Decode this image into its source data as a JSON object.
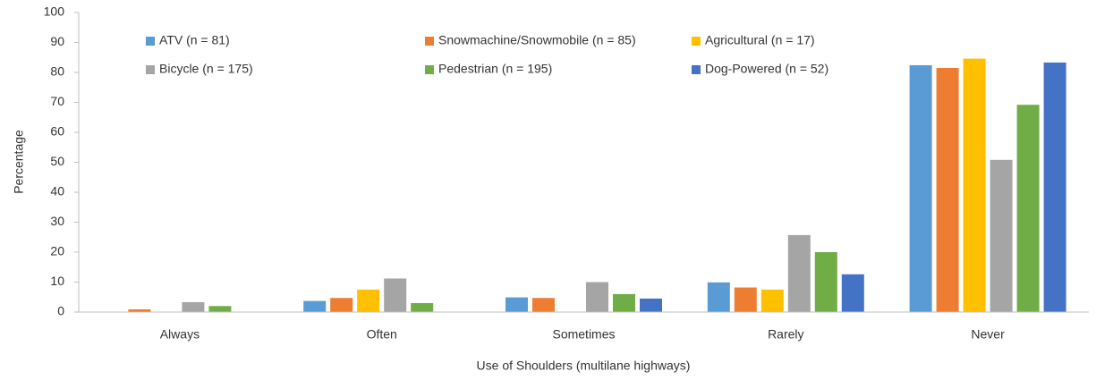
{
  "chart_data": {
    "type": "bar",
    "x_label": "Use of Shoulders (multilane highways)",
    "y_label": "Percentage",
    "categories": [
      "Always",
      "Often",
      "Sometimes",
      "Rarely",
      "Never"
    ],
    "series": [
      {
        "name": "ATV (n = 81)",
        "color": "#5b9bd5",
        "values": [
          0,
          3.7,
          4.9,
          9.9,
          82.4
        ]
      },
      {
        "name": "Snowmachine/Snowmobile (n = 85)",
        "color": "#ed7d31",
        "values": [
          0.9,
          4.7,
          4.7,
          8.2,
          81.5
        ]
      },
      {
        "name": "Agricultural (n = 17)",
        "color": "#ffc000",
        "values": [
          0,
          7.5,
          0,
          7.5,
          84.6
        ]
      },
      {
        "name": "Bicycle (n = 175)",
        "color": "#a5a5a5",
        "values": [
          3.3,
          11.2,
          10,
          25.7,
          50.8
        ]
      },
      {
        "name": "Pedestrian (n = 195)",
        "color": "#70ad47",
        "values": [
          2,
          3,
          6,
          20,
          69.2
        ]
      },
      {
        "name": "Dog-Powered (n = 52)",
        "color": "#4472c4",
        "values": [
          0,
          0,
          4.5,
          12.6,
          83.3
        ]
      }
    ],
    "ylim": [
      0,
      100
    ],
    "yticks": [
      0,
      10,
      20,
      30,
      40,
      50,
      60,
      70,
      80,
      90,
      100
    ],
    "grid": false,
    "legend": "top-left"
  }
}
